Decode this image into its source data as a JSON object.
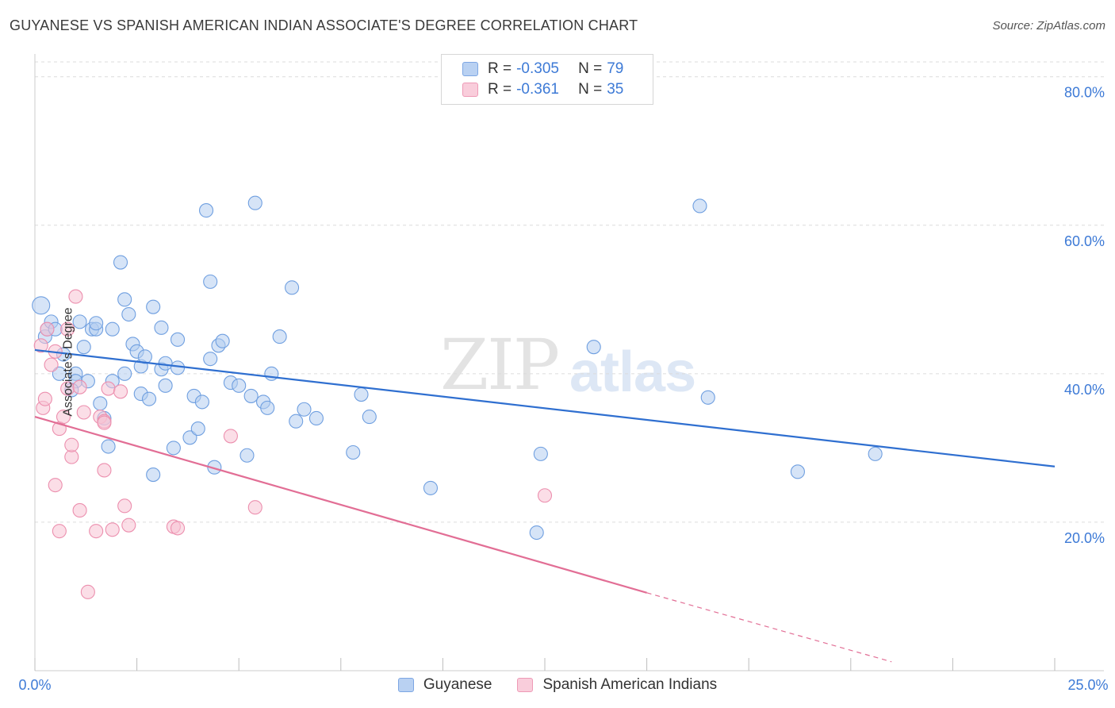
{
  "title": "GUYANESE VS SPANISH AMERICAN INDIAN ASSOCIATE'S DEGREE CORRELATION CHART",
  "source": "Source: ZipAtlas.com",
  "watermark": {
    "zip": "ZIP",
    "atlas": "atlas"
  },
  "legend": {
    "rows": [
      {
        "r_label": "R =",
        "r_value": "-0.305",
        "n_label": "N =",
        "n_value": "79",
        "color": "#a8c6ee"
      },
      {
        "r_label": "R =",
        "r_value": "-0.361",
        "n_label": "N =",
        "n_value": "35",
        "color": "#f5b8cb"
      }
    ]
  },
  "chart_data": {
    "type": "scatter",
    "title": "GUYANESE VS SPANISH AMERICAN INDIAN ASSOCIATE'S DEGREE CORRELATION CHART",
    "xlabel": "",
    "ylabel": "Associate's Degree",
    "xlim": [
      0,
      25
    ],
    "ylim": [
      0,
      82
    ],
    "x_tick_labels": [
      "0.0%",
      "25.0%"
    ],
    "y_ticks": [
      20,
      40,
      60,
      80
    ],
    "y_tick_labels": [
      "20.0%",
      "40.0%",
      "60.0%",
      "80.0%"
    ],
    "grid": true,
    "legend_position": "bottom",
    "series": [
      {
        "name": "Guyanese",
        "color": "#6f9fe0",
        "fill": "#b5cdf0",
        "trend": {
          "x": [
            0,
            25
          ],
          "y": [
            43.2,
            27.5
          ],
          "color": "#2f6fd0"
        },
        "points": [
          [
            0.15,
            49.2
          ],
          [
            0.25,
            45.0
          ],
          [
            0.3,
            46.0
          ],
          [
            0.4,
            47.0
          ],
          [
            0.5,
            46.0
          ],
          [
            0.7,
            42.6
          ],
          [
            0.6,
            40.0
          ],
          [
            1.0,
            40.0
          ],
          [
            1.0,
            39.0
          ],
          [
            1.3,
            39.0
          ],
          [
            0.9,
            37.8
          ],
          [
            1.1,
            47.0
          ],
          [
            1.2,
            43.6
          ],
          [
            1.4,
            46.0
          ],
          [
            1.5,
            46.0
          ],
          [
            1.5,
            46.8
          ],
          [
            1.9,
            46.0
          ],
          [
            1.6,
            36.0
          ],
          [
            1.7,
            34.0
          ],
          [
            1.8,
            30.2
          ],
          [
            1.9,
            39.0
          ],
          [
            2.1,
            55.0
          ],
          [
            2.2,
            40.0
          ],
          [
            2.2,
            50.0
          ],
          [
            2.3,
            48.0
          ],
          [
            2.4,
            44.0
          ],
          [
            2.5,
            43.0
          ],
          [
            2.6,
            37.3
          ],
          [
            2.6,
            41.0
          ],
          [
            2.7,
            42.3
          ],
          [
            2.8,
            36.6
          ],
          [
            2.9,
            49.0
          ],
          [
            2.9,
            26.4
          ],
          [
            3.1,
            46.2
          ],
          [
            3.1,
            40.6
          ],
          [
            3.2,
            38.4
          ],
          [
            3.2,
            41.4
          ],
          [
            3.4,
            30.0
          ],
          [
            3.5,
            40.8
          ],
          [
            3.5,
            44.6
          ],
          [
            3.8,
            31.4
          ],
          [
            3.9,
            37.0
          ],
          [
            4.0,
            32.6
          ],
          [
            4.1,
            36.2
          ],
          [
            4.2,
            62.0
          ],
          [
            4.3,
            42.0
          ],
          [
            4.3,
            52.4
          ],
          [
            4.4,
            27.4
          ],
          [
            4.5,
            43.8
          ],
          [
            4.6,
            44.4
          ],
          [
            4.8,
            38.8
          ],
          [
            5.0,
            38.4
          ],
          [
            5.2,
            29.0
          ],
          [
            5.3,
            37.0
          ],
          [
            5.4,
            63.0
          ],
          [
            5.6,
            36.2
          ],
          [
            5.7,
            35.4
          ],
          [
            5.8,
            40.0
          ],
          [
            6.0,
            45.0
          ],
          [
            6.3,
            51.6
          ],
          [
            6.4,
            33.6
          ],
          [
            6.6,
            35.2
          ],
          [
            6.9,
            34.0
          ],
          [
            7.8,
            29.4
          ],
          [
            8.0,
            37.2
          ],
          [
            8.2,
            34.2
          ],
          [
            9.7,
            24.6
          ],
          [
            12.3,
            18.6
          ],
          [
            12.4,
            29.2
          ],
          [
            13.7,
            43.6
          ],
          [
            16.3,
            62.6
          ],
          [
            16.5,
            36.8
          ],
          [
            18.7,
            26.8
          ],
          [
            20.6,
            29.2
          ]
        ]
      },
      {
        "name": "Spanish American Indians",
        "color": "#ec8fae",
        "fill": "#f7c3d3",
        "trend": {
          "x": [
            0,
            15
          ],
          "y": [
            34.2,
            10.5
          ],
          "color": "#e26e95",
          "dashed_x": [
            15,
            21.0
          ],
          "dashed_y": [
            10.5,
            1.2
          ]
        },
        "points": [
          [
            0.15,
            43.8
          ],
          [
            0.2,
            35.4
          ],
          [
            0.25,
            36.6
          ],
          [
            0.3,
            46.0
          ],
          [
            0.4,
            41.2
          ],
          [
            0.5,
            43.0
          ],
          [
            0.5,
            25.0
          ],
          [
            0.6,
            32.6
          ],
          [
            0.6,
            18.8
          ],
          [
            0.7,
            34.2
          ],
          [
            0.8,
            46.0
          ],
          [
            0.8,
            38.0
          ],
          [
            0.9,
            28.8
          ],
          [
            0.9,
            30.4
          ],
          [
            1.0,
            50.4
          ],
          [
            1.1,
            21.6
          ],
          [
            1.1,
            38.2
          ],
          [
            1.2,
            34.8
          ],
          [
            1.3,
            10.6
          ],
          [
            1.5,
            18.8
          ],
          [
            1.6,
            34.2
          ],
          [
            1.7,
            33.6
          ],
          [
            1.7,
            33.4
          ],
          [
            1.7,
            27.0
          ],
          [
            1.8,
            38.0
          ],
          [
            1.9,
            19.0
          ],
          [
            2.1,
            37.6
          ],
          [
            2.2,
            22.2
          ],
          [
            2.3,
            19.6
          ],
          [
            3.4,
            19.4
          ],
          [
            3.5,
            19.2
          ],
          [
            4.8,
            31.6
          ],
          [
            5.4,
            22.0
          ],
          [
            12.5,
            23.6
          ]
        ]
      }
    ]
  }
}
